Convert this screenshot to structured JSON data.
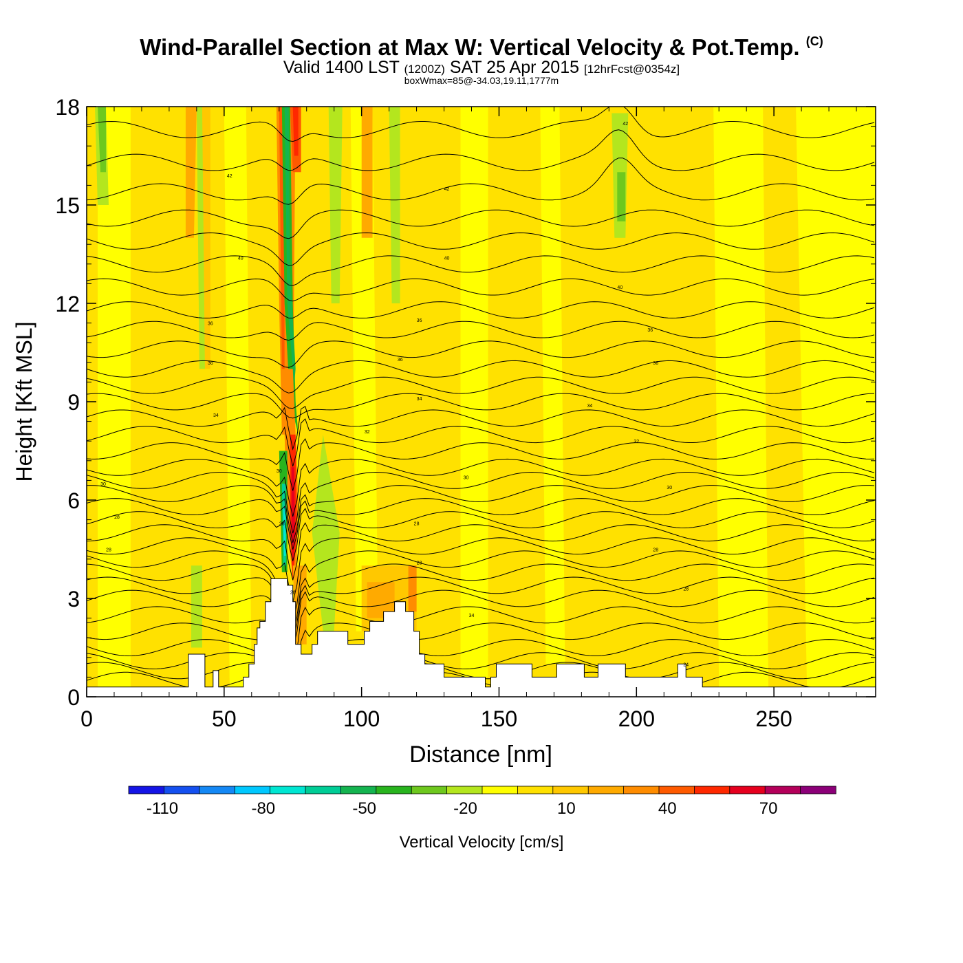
{
  "title": "Wind-Parallel Section at Max W: Vertical Velocity & Pot.Temp.",
  "copyright": "(C)",
  "subtitle": {
    "valid_prefix": "Valid 1400 LST",
    "zulu": "(1200Z)",
    "date": "SAT 25 Apr 2015",
    "forecast": "[12hrFcst@0354z]"
  },
  "subtitle2": "boxWmax=85@-34.03,19.11,1777m",
  "chart_data": {
    "type": "heatmap",
    "xlabel": "Distance [nm]",
    "ylabel": "Height [Kft MSL]",
    "xlim": [
      0,
      287
    ],
    "ylim": [
      0,
      18
    ],
    "xticks": [
      0,
      50,
      100,
      150,
      200,
      250
    ],
    "yticks": [
      0,
      3,
      6,
      9,
      12,
      15,
      18
    ],
    "colorbar": {
      "label": "Vertical Velocity [cm/s]",
      "min": -120,
      "max": 90,
      "step": 10,
      "tick_labels": [
        "-110",
        "-80",
        "-50",
        "-20",
        "10",
        "40",
        "70"
      ],
      "tick_values": [
        -110,
        -80,
        -50,
        -20,
        10,
        40,
        70
      ],
      "colors": [
        "#1414e6",
        "#1450f0",
        "#1488f5",
        "#00c8ff",
        "#00e6d2",
        "#00cd96",
        "#14b450",
        "#28b41e",
        "#6ec81e",
        "#b4e61e",
        "#ffff00",
        "#ffe100",
        "#ffc800",
        "#ffaa00",
        "#ff8c00",
        "#ff5a00",
        "#ff2800",
        "#e6001e",
        "#b4005a",
        "#8c0078"
      ]
    },
    "contour_field": "Potential temperature",
    "contour_labels": [
      {
        "text": "42",
        "x": 196,
        "y": 17.5
      },
      {
        "text": "42",
        "x": 52,
        "y": 15.9
      },
      {
        "text": "42",
        "x": 131,
        "y": 15.5
      },
      {
        "text": "40",
        "x": 56,
        "y": 13.4
      },
      {
        "text": "40",
        "x": 131,
        "y": 13.4
      },
      {
        "text": "40",
        "x": 194,
        "y": 12.5
      },
      {
        "text": "36",
        "x": 45,
        "y": 11.4
      },
      {
        "text": "36",
        "x": 121,
        "y": 11.5
      },
      {
        "text": "36",
        "x": 205,
        "y": 11.2
      },
      {
        "text": "36",
        "x": 45,
        "y": 10.2
      },
      {
        "text": "36",
        "x": 114,
        "y": 10.3
      },
      {
        "text": "36",
        "x": 207,
        "y": 10.2
      },
      {
        "text": "34",
        "x": 47,
        "y": 8.6
      },
      {
        "text": "34",
        "x": 121,
        "y": 9.1
      },
      {
        "text": "34",
        "x": 183,
        "y": 8.9
      },
      {
        "text": "32",
        "x": 102,
        "y": 8.1
      },
      {
        "text": "32",
        "x": 200,
        "y": 7.8
      },
      {
        "text": "30",
        "x": 6,
        "y": 6.5
      },
      {
        "text": "30",
        "x": 70,
        "y": 6.9
      },
      {
        "text": "30",
        "x": 138,
        "y": 6.7
      },
      {
        "text": "30",
        "x": 212,
        "y": 6.4
      },
      {
        "text": "28",
        "x": 11,
        "y": 5.5
      },
      {
        "text": "28",
        "x": 71,
        "y": 5.3
      },
      {
        "text": "28",
        "x": 120,
        "y": 5.3
      },
      {
        "text": "28",
        "x": 8,
        "y": 4.5
      },
      {
        "text": "28",
        "x": 121,
        "y": 4.1
      },
      {
        "text": "28",
        "x": 207,
        "y": 4.5
      },
      {
        "text": "28",
        "x": 218,
        "y": 3.3
      },
      {
        "text": "28",
        "x": 75,
        "y": 3.2
      },
      {
        "text": "34",
        "x": 140,
        "y": 2.5
      },
      {
        "text": "24",
        "x": 218,
        "y": 1.0
      }
    ],
    "terrain_profile": [
      [
        0,
        0.3
      ],
      [
        37,
        0.3
      ],
      [
        37,
        1.3
      ],
      [
        43,
        1.3
      ],
      [
        43,
        0.3
      ],
      [
        46,
        0.3
      ],
      [
        46,
        0.8
      ],
      [
        48,
        0.8
      ],
      [
        48,
        0.3
      ],
      [
        57,
        0.3
      ],
      [
        57,
        0.6
      ],
      [
        59,
        0.6
      ],
      [
        59,
        1.0
      ],
      [
        61,
        1.0
      ],
      [
        61,
        1.6
      ],
      [
        62,
        1.6
      ],
      [
        62,
        2.1
      ],
      [
        63,
        2.1
      ],
      [
        63,
        2.3
      ],
      [
        65,
        2.3
      ],
      [
        65,
        2.9
      ],
      [
        67,
        2.9
      ],
      [
        67,
        3.6
      ],
      [
        73,
        3.6
      ],
      [
        73,
        3.4
      ],
      [
        75,
        3.4
      ],
      [
        75,
        2.9
      ],
      [
        76,
        2.9
      ],
      [
        76,
        1.6
      ],
      [
        78,
        1.6
      ],
      [
        78,
        1.3
      ],
      [
        82,
        1.3
      ],
      [
        82,
        1.6
      ],
      [
        84,
        1.6
      ],
      [
        84,
        2.0
      ],
      [
        95,
        2.0
      ],
      [
        95,
        1.6
      ],
      [
        101,
        1.6
      ],
      [
        101,
        2.0
      ],
      [
        103,
        2.0
      ],
      [
        103,
        2.3
      ],
      [
        108,
        2.3
      ],
      [
        108,
        2.6
      ],
      [
        112,
        2.6
      ],
      [
        112,
        2.9
      ],
      [
        116,
        2.9
      ],
      [
        116,
        2.6
      ],
      [
        119,
        2.6
      ],
      [
        119,
        2.0
      ],
      [
        121,
        2.0
      ],
      [
        121,
        1.3
      ],
      [
        123,
        1.3
      ],
      [
        123,
        1.0
      ],
      [
        130,
        1.0
      ],
      [
        130,
        0.6
      ],
      [
        145,
        0.6
      ],
      [
        145,
        0.3
      ],
      [
        147,
        0.3
      ],
      [
        147,
        0.6
      ],
      [
        149,
        0.6
      ],
      [
        149,
        1.0
      ],
      [
        162,
        1.0
      ],
      [
        162,
        0.6
      ],
      [
        171,
        0.6
      ],
      [
        171,
        1.0
      ],
      [
        181,
        1.0
      ],
      [
        181,
        0.6
      ],
      [
        186,
        0.6
      ],
      [
        186,
        1.0
      ],
      [
        196,
        1.0
      ],
      [
        196,
        0.6
      ],
      [
        215,
        0.6
      ],
      [
        215,
        1.0
      ],
      [
        218,
        1.0
      ],
      [
        218,
        0.6
      ],
      [
        224,
        0.6
      ],
      [
        224,
        0.3
      ],
      [
        287,
        0.3
      ]
    ]
  }
}
